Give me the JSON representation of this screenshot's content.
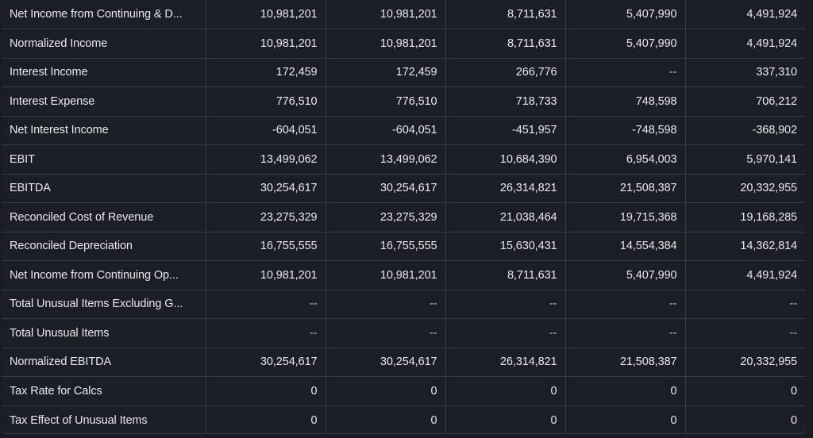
{
  "table": {
    "rows": [
      {
        "label": "Net Income from Continuing & D...",
        "values": [
          "10,981,201",
          "10,981,201",
          "8,711,631",
          "5,407,990",
          "4,491,924"
        ]
      },
      {
        "label": "Normalized Income",
        "values": [
          "10,981,201",
          "10,981,201",
          "8,711,631",
          "5,407,990",
          "4,491,924"
        ]
      },
      {
        "label": "Interest Income",
        "values": [
          "172,459",
          "172,459",
          "266,776",
          "--",
          "337,310"
        ]
      },
      {
        "label": "Interest Expense",
        "values": [
          "776,510",
          "776,510",
          "718,733",
          "748,598",
          "706,212"
        ]
      },
      {
        "label": "Net Interest Income",
        "values": [
          "-604,051",
          "-604,051",
          "-451,957",
          "-748,598",
          "-368,902"
        ]
      },
      {
        "label": "EBIT",
        "values": [
          "13,499,062",
          "13,499,062",
          "10,684,390",
          "6,954,003",
          "5,970,141"
        ]
      },
      {
        "label": "EBITDA",
        "values": [
          "30,254,617",
          "30,254,617",
          "26,314,821",
          "21,508,387",
          "20,332,955"
        ]
      },
      {
        "label": "Reconciled Cost of Revenue",
        "values": [
          "23,275,329",
          "23,275,329",
          "21,038,464",
          "19,715,368",
          "19,168,285"
        ]
      },
      {
        "label": "Reconciled Depreciation",
        "values": [
          "16,755,555",
          "16,755,555",
          "15,630,431",
          "14,554,384",
          "14,362,814"
        ]
      },
      {
        "label": "Net Income from Continuing Op...",
        "values": [
          "10,981,201",
          "10,981,201",
          "8,711,631",
          "5,407,990",
          "4,491,924"
        ]
      },
      {
        "label": "Total Unusual Items Excluding G...",
        "values": [
          "--",
          "--",
          "--",
          "--",
          "--"
        ]
      },
      {
        "label": "Total Unusual Items",
        "values": [
          "--",
          "--",
          "--",
          "--",
          "--"
        ]
      },
      {
        "label": "Normalized EBITDA",
        "values": [
          "30,254,617",
          "30,254,617",
          "26,314,821",
          "21,508,387",
          "20,332,955"
        ]
      },
      {
        "label": "Tax Rate for Calcs",
        "values": [
          "0",
          "0",
          "0",
          "0",
          "0"
        ]
      },
      {
        "label": "Tax Effect of Unusual Items",
        "values": [
          "0",
          "0",
          "0",
          "0",
          "0"
        ]
      }
    ]
  }
}
